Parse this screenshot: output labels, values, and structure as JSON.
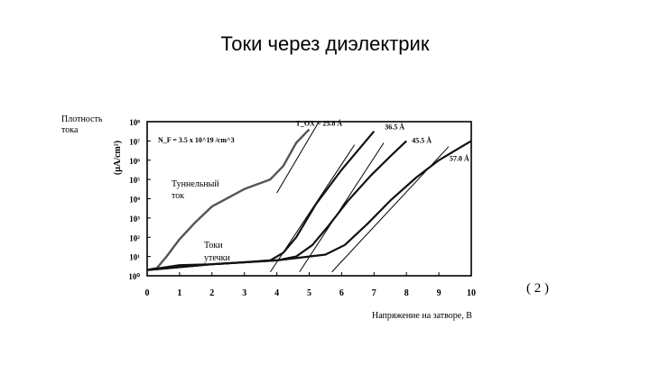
{
  "slide": {
    "title": "Токи через диэлектрик",
    "side_label_line1": "Плотность",
    "side_label_line2": "тока",
    "equation_number": "( 2 )",
    "x_axis_title": "Напряжение на затворе, В"
  },
  "chart_data": {
    "type": "line",
    "title": "",
    "ylabel": "(µA/cm²)",
    "annotation_np": "N_F = 3.5 x 10^19 /cm^3",
    "label_tunnel_line1": "Туннельный",
    "label_tunnel_line2": "ток",
    "label_leak_line1": "Токи",
    "label_leak_line2": "утечки",
    "xlim": [
      0,
      10
    ],
    "ylim": [
      0,
      8
    ],
    "y_scale": "log10",
    "x_ticks": [
      "0",
      "1",
      "2",
      "3",
      "4",
      "5",
      "6",
      "7",
      "8",
      "9",
      "10"
    ],
    "y_ticks": [
      "10⁰",
      "10¹",
      "10²",
      "10³",
      "10⁴",
      "10⁵",
      "10⁶",
      "10⁷",
      "10⁸"
    ],
    "series": [
      {
        "name": "T_OX = 25.8 Å",
        "x": [
          0,
          0.3,
          0.6,
          1.0,
          1.5,
          2.0,
          3.0,
          3.8,
          4.2,
          4.6,
          5.0
        ],
        "y": [
          0.3,
          0.4,
          1.0,
          1.9,
          2.8,
          3.6,
          4.5,
          5.0,
          5.7,
          6.9,
          7.6
        ]
      },
      {
        "name": "36.5 Å",
        "x": [
          0,
          1,
          2,
          3,
          3.8,
          4.2,
          4.6,
          5.2,
          6.0,
          6.6,
          7.0
        ],
        "y": [
          0.3,
          0.55,
          0.6,
          0.7,
          0.8,
          1.2,
          2.0,
          3.7,
          5.5,
          6.7,
          7.5
        ]
      },
      {
        "name": "45.5 Å",
        "x": [
          0,
          2,
          4,
          4.6,
          5.1,
          5.6,
          6.2,
          6.9,
          7.5,
          8.0
        ],
        "y": [
          0.3,
          0.6,
          0.8,
          1.0,
          1.6,
          2.6,
          3.9,
          5.2,
          6.2,
          7.0
        ]
      },
      {
        "name": "57.0 Å",
        "x": [
          0,
          2,
          4,
          5.5,
          6.1,
          6.8,
          7.5,
          8.3,
          9.0,
          9.6,
          10.0
        ],
        "y": [
          0.3,
          0.6,
          0.8,
          1.1,
          1.6,
          2.7,
          3.9,
          5.1,
          6.0,
          6.6,
          7.0
        ]
      }
    ],
    "tangent_lines": [
      {
        "x": [
          4.0,
          5.3
        ],
        "y": [
          4.3,
          8.0
        ]
      },
      {
        "x": [
          3.8,
          6.4
        ],
        "y": [
          0.2,
          6.8
        ]
      },
      {
        "x": [
          4.7,
          7.3
        ],
        "y": [
          0.2,
          6.9
        ]
      },
      {
        "x": [
          5.7,
          9.3
        ],
        "y": [
          0.2,
          6.7
        ]
      }
    ],
    "series_label_positions_note": "labels placed near curve tops"
  }
}
